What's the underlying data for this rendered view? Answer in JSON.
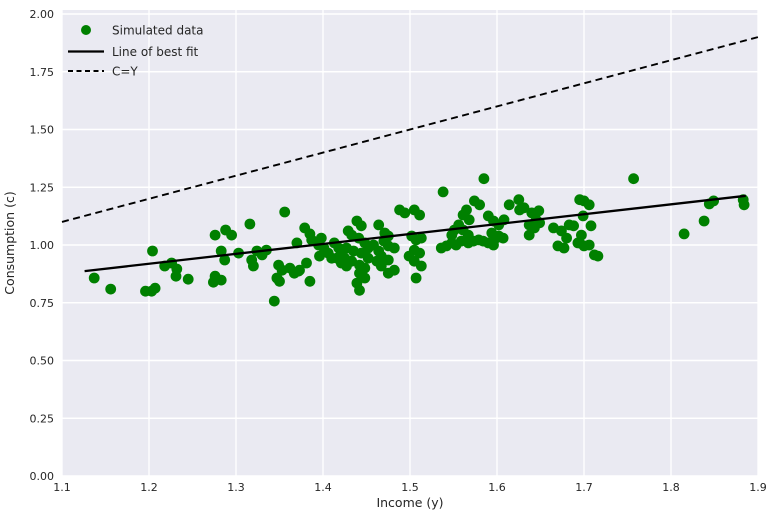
{
  "figure": {
    "background": "#ffffff",
    "axes_background": "#eaeaf2",
    "grid_color": "#ffffff",
    "text_color": "#262626"
  },
  "chart_data": {
    "type": "scatter",
    "title": "",
    "xlabel": "Income (y)",
    "ylabel": "Consumption (c)",
    "xlim": [
      1.1,
      1.9
    ],
    "ylim": [
      0.0,
      2.0
    ],
    "grid": true,
    "xticks": [
      1.1,
      1.2,
      1.3,
      1.4,
      1.5,
      1.6,
      1.7,
      1.8,
      1.9
    ],
    "xtick_labels": [
      "1.1",
      "1.2",
      "1.3",
      "1.4",
      "1.5",
      "1.6",
      "1.7",
      "1.8",
      "1.9"
    ],
    "yticks": [
      0.0,
      0.25,
      0.5,
      0.75,
      1.0,
      1.25,
      1.5,
      1.75,
      2.0
    ],
    "ytick_labels": [
      "0.00",
      "0.25",
      "0.50",
      "0.75",
      "1.00",
      "1.25",
      "1.50",
      "1.75",
      "2.00"
    ],
    "legend": {
      "position": "upper left",
      "frame": false,
      "entries": [
        {
          "label": "Simulated data",
          "marker": "dot",
          "color": "#008000"
        },
        {
          "label": "Line of best fit",
          "marker": "solid-line",
          "color": "#000000"
        },
        {
          "label": "C=Y",
          "marker": "dashed-line",
          "color": "#000000"
        }
      ]
    },
    "series": [
      {
        "name": "Simulated data",
        "type": "scatter",
        "color": "#008000",
        "points": [
          [
            1.137,
            0.857
          ],
          [
            1.156,
            0.809
          ],
          [
            1.196,
            0.8
          ],
          [
            1.203,
            0.8
          ],
          [
            1.207,
            0.813
          ],
          [
            1.204,
            0.974
          ],
          [
            1.218,
            0.909
          ],
          [
            1.226,
            0.922
          ],
          [
            1.232,
            0.896
          ],
          [
            1.231,
            0.865
          ],
          [
            1.245,
            0.852
          ],
          [
            1.276,
            1.043
          ],
          [
            1.288,
            1.065
          ],
          [
            1.295,
            1.043
          ],
          [
            1.283,
            0.974
          ],
          [
            1.287,
            0.935
          ],
          [
            1.303,
            0.965
          ],
          [
            1.276,
            0.865
          ],
          [
            1.274,
            0.839
          ],
          [
            1.283,
            0.848
          ],
          [
            1.316,
            1.091
          ],
          [
            1.356,
            1.143
          ],
          [
            1.379,
            1.074
          ],
          [
            1.385,
            1.048
          ],
          [
            1.387,
            1.022
          ],
          [
            1.398,
            1.03
          ],
          [
            1.37,
            1.009
          ],
          [
            1.324,
            0.974
          ],
          [
            1.33,
            0.957
          ],
          [
            1.335,
            0.978
          ],
          [
            1.318,
            0.935
          ],
          [
            1.32,
            0.909
          ],
          [
            1.349,
            0.913
          ],
          [
            1.353,
            0.891
          ],
          [
            1.347,
            0.857
          ],
          [
            1.35,
            0.843
          ],
          [
            1.367,
            0.878
          ],
          [
            1.373,
            0.891
          ],
          [
            1.381,
            0.922
          ],
          [
            1.395,
            1.0
          ],
          [
            1.401,
            0.987
          ],
          [
            1.406,
            0.965
          ],
          [
            1.413,
            1.009
          ],
          [
            1.418,
            0.987
          ],
          [
            1.421,
            0.965
          ],
          [
            1.416,
            0.943
          ],
          [
            1.421,
            0.922
          ],
          [
            1.425,
            0.943
          ],
          [
            1.427,
            0.909
          ],
          [
            1.433,
            0.93
          ],
          [
            1.439,
            1.104
          ],
          [
            1.444,
            1.083
          ],
          [
            1.429,
            1.061
          ],
          [
            1.433,
            1.043
          ],
          [
            1.441,
            1.03
          ],
          [
            1.448,
            1.009
          ],
          [
            1.452,
            0.987
          ],
          [
            1.442,
            0.913
          ],
          [
            1.448,
            0.9
          ],
          [
            1.442,
            0.878
          ],
          [
            1.448,
            0.857
          ],
          [
            1.439,
            0.835
          ],
          [
            1.442,
            0.804
          ],
          [
            1.464,
            1.087
          ],
          [
            1.471,
            1.052
          ],
          [
            1.475,
            1.039
          ],
          [
            1.47,
            1.017
          ],
          [
            1.475,
            0.996
          ],
          [
            1.464,
            0.974
          ],
          [
            1.467,
            0.952
          ],
          [
            1.462,
            0.93
          ],
          [
            1.467,
            0.909
          ],
          [
            1.475,
            0.935
          ],
          [
            1.482,
            0.987
          ],
          [
            1.488,
            1.152
          ],
          [
            1.494,
            1.139
          ],
          [
            1.505,
            1.152
          ],
          [
            1.511,
            1.13
          ],
          [
            1.502,
            1.039
          ],
          [
            1.507,
            1.022
          ],
          [
            1.513,
            1.03
          ],
          [
            1.505,
            0.978
          ],
          [
            1.511,
            0.965
          ],
          [
            1.499,
            0.952
          ],
          [
            1.505,
            0.93
          ],
          [
            1.513,
            0.909
          ],
          [
            1.482,
            0.891
          ],
          [
            1.475,
            0.878
          ],
          [
            1.507,
            0.857
          ],
          [
            1.344,
            0.757
          ],
          [
            1.362,
            0.9
          ],
          [
            1.372,
            0.887
          ],
          [
            1.385,
            0.843
          ],
          [
            1.41,
            0.943
          ],
          [
            1.396,
            0.952
          ],
          [
            1.427,
            0.987
          ],
          [
            1.435,
            0.974
          ],
          [
            1.452,
            0.943
          ],
          [
            1.458,
            1.0
          ],
          [
            1.444,
            0.965
          ],
          [
            1.585,
            1.287
          ],
          [
            1.538,
            1.23
          ],
          [
            1.565,
            1.152
          ],
          [
            1.574,
            1.191
          ],
          [
            1.58,
            1.174
          ],
          [
            1.561,
            1.13
          ],
          [
            1.568,
            1.109
          ],
          [
            1.556,
            1.087
          ],
          [
            1.561,
            1.065
          ],
          [
            1.567,
            1.043
          ],
          [
            1.551,
            1.065
          ],
          [
            1.548,
            1.043
          ],
          [
            1.59,
            1.126
          ],
          [
            1.596,
            1.104
          ],
          [
            1.602,
            1.087
          ],
          [
            1.594,
            1.052
          ],
          [
            1.599,
            1.03
          ],
          [
            1.608,
            1.109
          ],
          [
            1.614,
            1.174
          ],
          [
            1.625,
            1.196
          ],
          [
            1.626,
            1.152
          ],
          [
            1.631,
            1.161
          ],
          [
            1.64,
            1.139
          ],
          [
            1.648,
            1.148
          ],
          [
            1.645,
            1.109
          ],
          [
            1.637,
            1.087
          ],
          [
            1.643,
            1.074
          ],
          [
            1.637,
            1.043
          ],
          [
            1.649,
            1.096
          ],
          [
            1.665,
            1.074
          ],
          [
            1.674,
            1.061
          ],
          [
            1.683,
            1.087
          ],
          [
            1.695,
            1.196
          ],
          [
            1.7,
            1.191
          ],
          [
            1.706,
            1.174
          ],
          [
            1.699,
            1.126
          ],
          [
            1.688,
            1.083
          ],
          [
            1.708,
            1.083
          ],
          [
            1.68,
            1.03
          ],
          [
            1.67,
            0.996
          ],
          [
            1.677,
            0.987
          ],
          [
            1.693,
            1.009
          ],
          [
            1.7,
            0.996
          ],
          [
            1.712,
            0.957
          ],
          [
            1.716,
            0.952
          ],
          [
            1.536,
            0.987
          ],
          [
            1.542,
            0.996
          ],
          [
            1.548,
            1.009
          ],
          [
            1.553,
            1.0
          ],
          [
            1.559,
            1.017
          ],
          [
            1.567,
            1.009
          ],
          [
            1.573,
            1.017
          ],
          [
            1.579,
            1.022
          ],
          [
            1.584,
            1.017
          ],
          [
            1.59,
            1.009
          ],
          [
            1.596,
            1.0
          ],
          [
            1.602,
            1.039
          ],
          [
            1.607,
            1.03
          ],
          [
            1.697,
            1.043
          ],
          [
            1.695,
            1.009
          ],
          [
            1.706,
            1.0
          ],
          [
            1.757,
            1.287
          ],
          [
            1.844,
            1.178
          ],
          [
            1.849,
            1.191
          ],
          [
            1.883,
            1.196
          ],
          [
            1.884,
            1.174
          ],
          [
            1.838,
            1.104
          ],
          [
            1.815,
            1.048
          ]
        ]
      },
      {
        "name": "Line of best fit",
        "type": "line",
        "style": "solid",
        "color": "#000000",
        "points": [
          [
            1.126,
            0.887
          ],
          [
            1.886,
            1.213
          ]
        ]
      },
      {
        "name": "C=Y",
        "type": "line",
        "style": "dashed",
        "color": "#000000",
        "points": [
          [
            1.1,
            1.1
          ],
          [
            1.9,
            1.9
          ]
        ]
      }
    ]
  }
}
